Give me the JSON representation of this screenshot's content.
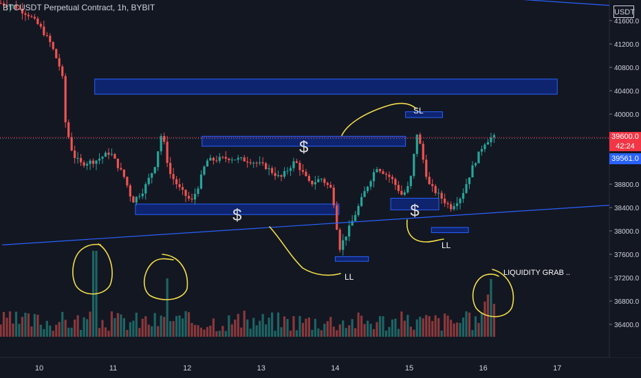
{
  "header": {
    "symbol_title": "BTCUSDT Perpetual Contract, 1h, BYBIT",
    "currency": "USDT"
  },
  "price_tags": {
    "last_price": "39600.0",
    "countdown": "42:24",
    "blue_level": "39561.0"
  },
  "colors": {
    "background": "#131722",
    "up": "#26a69a",
    "down": "#ef5350",
    "zone_fill": "#0d2a8a",
    "zone_stroke": "#2962ff",
    "annotation": "#f5e04a",
    "trendline": "#2962ff",
    "axis_text": "#d1d4dc",
    "last_price_tag": "#f23645",
    "blue_tag": "#2962ff"
  },
  "chart_data": {
    "type": "candlestick",
    "y_axis": {
      "ticks": [
        "41600.0",
        "41200.0",
        "40800.0",
        "40400.0",
        "40000.0",
        "39600.0",
        "39200.0",
        "38800.0",
        "38400.0",
        "38000.0",
        "37600.0",
        "37200.0",
        "36800.0",
        "36400.0"
      ],
      "range": [
        36200,
        41900
      ]
    },
    "x_axis": {
      "ticks": [
        "10",
        "11",
        "12",
        "13",
        "14",
        "15",
        "16",
        "17"
      ]
    },
    "price_path": [
      [
        9.5,
        41900
      ],
      [
        9.7,
        41850
      ],
      [
        9.9,
        41700
      ],
      [
        10.05,
        41500
      ],
      [
        10.2,
        41200
      ],
      [
        10.35,
        40700
      ],
      [
        10.4,
        39800
      ],
      [
        10.5,
        39300
      ],
      [
        10.6,
        39150
      ],
      [
        10.8,
        39200
      ],
      [
        11.0,
        39350
      ],
      [
        11.2,
        38900
      ],
      [
        11.3,
        38500
      ],
      [
        11.45,
        38700
      ],
      [
        11.6,
        39100
      ],
      [
        11.7,
        39700
      ],
      [
        11.8,
        39000
      ],
      [
        11.95,
        38700
      ],
      [
        12.1,
        38500
      ],
      [
        12.2,
        38800
      ],
      [
        12.3,
        39200
      ],
      [
        12.6,
        39250
      ],
      [
        12.9,
        39200
      ],
      [
        13.1,
        39100
      ],
      [
        13.3,
        38900
      ],
      [
        13.5,
        39200
      ],
      [
        13.7,
        38800
      ],
      [
        13.85,
        38900
      ],
      [
        14.0,
        38700
      ],
      [
        14.1,
        37700
      ],
      [
        14.25,
        38100
      ],
      [
        14.45,
        38700
      ],
      [
        14.6,
        39100
      ],
      [
        14.8,
        38900
      ],
      [
        14.95,
        38600
      ],
      [
        15.05,
        38800
      ],
      [
        15.15,
        39700
      ],
      [
        15.3,
        38800
      ],
      [
        15.45,
        38600
      ],
      [
        15.6,
        38400
      ],
      [
        15.75,
        38600
      ],
      [
        15.9,
        39100
      ],
      [
        16.05,
        39500
      ],
      [
        16.15,
        39600
      ]
    ],
    "volume_bars_approx": 210,
    "zones": [
      {
        "x": [
          10.75,
          17.0
        ],
        "y": [
          40340,
          40600
        ],
        "label": ""
      },
      {
        "x": [
          12.2,
          14.95
        ],
        "y": [
          39450,
          39620
        ],
        "label": "$"
      },
      {
        "x": [
          11.3,
          14.05
        ],
        "y": [
          38280,
          38460
        ],
        "label": "$"
      },
      {
        "x": [
          14.75,
          15.4
        ],
        "y": [
          38360,
          38560
        ],
        "label": "$"
      },
      {
        "x": [
          14.95,
          15.45
        ],
        "y": [
          39940,
          40040
        ],
        "label": ""
      },
      {
        "x": [
          14.0,
          14.45
        ],
        "y": [
          37480,
          37560
        ],
        "label": ""
      },
      {
        "x": [
          15.3,
          15.8
        ],
        "y": [
          37970,
          38060
        ],
        "label": ""
      }
    ],
    "annotations": [
      "SL",
      "LL",
      "LL",
      "LIQUIDITY GRAB .."
    ],
    "trendlines": [
      {
        "from": [
          9.5,
          37760
        ],
        "to": [
          17.75,
          38440
        ]
      },
      {
        "from": [
          16.3,
          41980
        ],
        "to": [
          17.75,
          41860
        ]
      }
    ],
    "horizontal_levels": [
      39600,
      39561
    ]
  }
}
